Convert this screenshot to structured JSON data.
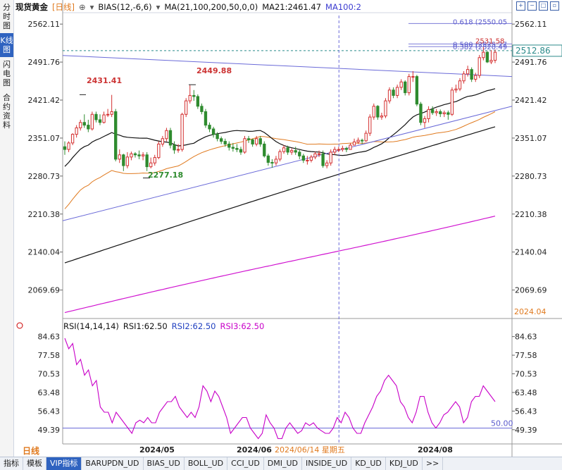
{
  "sidebar": {
    "tabs": [
      {
        "label": "分时图",
        "active": false
      },
      {
        "label": "K线图",
        "active": true
      },
      {
        "label": "闪电图",
        "active": false
      },
      {
        "label": "合约资料",
        "active": false
      }
    ]
  },
  "header": {
    "title": "现货黄金",
    "period": "[日线]",
    "bias": "BIAS(12,-6,6)",
    "ma": "MA(21,100,200,50,0,0)",
    "ma21": "MA21:2461.47",
    "ma100": "MA100:2"
  },
  "chart_data": {
    "type": "candlestick",
    "price_axis": {
      "ticks": [
        2562.11,
        2491.76,
        2421.42,
        2351.07,
        2280.73,
        2210.38,
        2140.04,
        2069.69
      ],
      "ylim": [
        2017,
        2578
      ],
      "current_price": "2512.86",
      "bottom_value": "2024.04"
    },
    "annotations": {
      "high1": "2431.41",
      "high2": "2449.88",
      "low1": "2277.18",
      "fib1": "0.618 (2550.05",
      "fib2": "0.500 (2525.27",
      "fib3": "0.382 (2520.49",
      "fib4": "2531.58"
    },
    "time_axis": {
      "labels": [
        {
          "label": "2024/05",
          "index": 14
        },
        {
          "label": "2024/06",
          "index": 34
        },
        {
          "label": "2024/08",
          "index": 72
        }
      ],
      "crosshair_label": "2024/06/14 星期五",
      "crosshair_index": 69
    },
    "candles": {
      "open": [
        2335,
        2330,
        2342,
        2358,
        2370,
        2380,
        2375,
        2368,
        2395,
        2385,
        2380,
        2394,
        2395,
        2400,
        2312,
        2320,
        2300,
        2316,
        2322,
        2320,
        2318,
        2320,
        2298,
        2305,
        2315,
        2340,
        2350,
        2365,
        2338,
        2329,
        2330,
        2395,
        2420,
        2430,
        2428,
        2410,
        2400,
        2375,
        2368,
        2358,
        2350,
        2345,
        2340,
        2334,
        2332,
        2330,
        2325,
        2350,
        2348,
        2340,
        2350,
        2340,
        2318,
        2306,
        2305,
        2312,
        2326,
        2333,
        2325,
        2328,
        2325,
        2318,
        2310,
        2310,
        2316,
        2322,
        2322,
        2300,
        2305,
        2325,
        2330,
        2330,
        2332,
        2330,
        2338,
        2344,
        2347,
        2346,
        2360,
        2390,
        2410,
        2390,
        2392,
        2420,
        2440,
        2430,
        2445,
        2455,
        2435,
        2465,
        2465,
        2414,
        2380,
        2387,
        2404,
        2398,
        2400,
        2396,
        2398,
        2395,
        2440,
        2442,
        2457,
        2470,
        2478,
        2460,
        2467,
        2500,
        2510,
        2492,
        2495
      ],
      "close": [
        2330,
        2342,
        2358,
        2370,
        2380,
        2375,
        2368,
        2395,
        2385,
        2380,
        2394,
        2395,
        2400,
        2312,
        2320,
        2300,
        2316,
        2322,
        2320,
        2318,
        2320,
        2298,
        2305,
        2315,
        2340,
        2350,
        2365,
        2338,
        2329,
        2330,
        2395,
        2420,
        2430,
        2428,
        2410,
        2400,
        2375,
        2368,
        2358,
        2350,
        2345,
        2340,
        2334,
        2332,
        2330,
        2325,
        2350,
        2348,
        2340,
        2350,
        2340,
        2318,
        2306,
        2305,
        2312,
        2326,
        2333,
        2325,
        2328,
        2325,
        2318,
        2310,
        2310,
        2316,
        2322,
        2322,
        2300,
        2305,
        2325,
        2330,
        2330,
        2332,
        2330,
        2338,
        2344,
        2347,
        2346,
        2360,
        2390,
        2410,
        2390,
        2392,
        2420,
        2440,
        2430,
        2445,
        2455,
        2435,
        2465,
        2465,
        2414,
        2380,
        2387,
        2404,
        2398,
        2400,
        2396,
        2398,
        2395,
        2440,
        2442,
        2457,
        2470,
        2478,
        2460,
        2467,
        2500,
        2510,
        2492,
        2495,
        2510
      ],
      "high": [
        2345,
        2345,
        2360,
        2375,
        2385,
        2395,
        2385,
        2400,
        2400,
        2395,
        2400,
        2405,
        2431,
        2405,
        2330,
        2322,
        2325,
        2326,
        2325,
        2328,
        2325,
        2325,
        2315,
        2320,
        2345,
        2355,
        2370,
        2370,
        2345,
        2340,
        2398,
        2425,
        2449,
        2440,
        2432,
        2415,
        2405,
        2380,
        2372,
        2362,
        2354,
        2350,
        2345,
        2342,
        2340,
        2335,
        2355,
        2355,
        2350,
        2355,
        2355,
        2345,
        2322,
        2312,
        2318,
        2330,
        2338,
        2337,
        2332,
        2335,
        2330,
        2322,
        2318,
        2320,
        2326,
        2328,
        2328,
        2310,
        2330,
        2335,
        2335,
        2337,
        2335,
        2342,
        2350,
        2352,
        2350,
        2365,
        2395,
        2415,
        2412,
        2398,
        2425,
        2445,
        2445,
        2450,
        2460,
        2458,
        2470,
        2475,
        2468,
        2418,
        2392,
        2410,
        2410,
        2405,
        2404,
        2402,
        2402,
        2445,
        2450,
        2462,
        2475,
        2485,
        2482,
        2472,
        2505,
        2520,
        2512,
        2514,
        2515
      ],
      "low": [
        2320,
        2325,
        2338,
        2352,
        2365,
        2370,
        2362,
        2365,
        2380,
        2375,
        2378,
        2390,
        2390,
        2308,
        2305,
        2290,
        2295,
        2310,
        2315,
        2312,
        2310,
        2290,
        2295,
        2300,
        2312,
        2335,
        2345,
        2332,
        2322,
        2324,
        2326,
        2390,
        2415,
        2420,
        2405,
        2395,
        2370,
        2362,
        2352,
        2345,
        2340,
        2335,
        2328,
        2326,
        2325,
        2320,
        2322,
        2342,
        2335,
        2336,
        2335,
        2315,
        2300,
        2296,
        2300,
        2308,
        2322,
        2320,
        2320,
        2320,
        2312,
        2305,
        2302,
        2306,
        2312,
        2316,
        2296,
        2295,
        2300,
        2320,
        2325,
        2326,
        2325,
        2330,
        2338,
        2340,
        2340,
        2344,
        2355,
        2385,
        2385,
        2385,
        2388,
        2415,
        2425,
        2425,
        2440,
        2430,
        2430,
        2455,
        2410,
        2375,
        2370,
        2380,
        2394,
        2392,
        2390,
        2390,
        2385,
        2392,
        2435,
        2438,
        2452,
        2465,
        2455,
        2455,
        2462,
        2495,
        2490,
        2488,
        2490
      ]
    },
    "series": [
      {
        "name": "MA21",
        "color": "#000000",
        "values_start": [
          2330,
          2336,
          2345,
          2355,
          2363,
          2370,
          2372
        ]
      },
      {
        "name": "MA50",
        "color": "#e07a1f"
      },
      {
        "name": "MA100",
        "color": "#000000"
      },
      {
        "name": "MA200",
        "color": "#d012d0"
      }
    ],
    "rsi": {
      "header": {
        "label": "RSI(14,14,14)",
        "rsi1": "RSI1:62.50",
        "rsi2": "RSI2:62.50",
        "rsi3": "RSI3:62.50"
      },
      "ticks": [
        84.63,
        77.58,
        70.53,
        63.48,
        56.43,
        49.39
      ],
      "ylim": [
        44,
        88
      ],
      "level_label": "50.00",
      "level": 50,
      "color": "#c800c8",
      "values": [
        84,
        80,
        82,
        74,
        76,
        70,
        72,
        66,
        68,
        58,
        56,
        56,
        52,
        56,
        54,
        52,
        50,
        48,
        52,
        53,
        52,
        54,
        52,
        52,
        56,
        58,
        60,
        60,
        62,
        58,
        56,
        54,
        56,
        54,
        58,
        66,
        64,
        60,
        64,
        62,
        58,
        54,
        48,
        50,
        52,
        54,
        54,
        50,
        48,
        46,
        48,
        55,
        52,
        50,
        46,
        46,
        50,
        52,
        50,
        48,
        49,
        52,
        51,
        52,
        50,
        49,
        48,
        48,
        50,
        54,
        52,
        56,
        54,
        50,
        48,
        48,
        52,
        55,
        58,
        62,
        64,
        68,
        70,
        68,
        66,
        60,
        58,
        54,
        52,
        56,
        62,
        62,
        56,
        52,
        50,
        52,
        55,
        56,
        58,
        60,
        58,
        52,
        54,
        60,
        62,
        62,
        66,
        64,
        62,
        60
      ]
    }
  },
  "bottombar": {
    "period": "日线",
    "tabs": [
      "指标",
      "模板",
      "VIP指标",
      "BARUPDN_UD",
      "BIAS_UD",
      "BOLL_UD",
      "CCI_UD",
      "DMI_UD",
      "INSIDE_UD",
      "KD_UD",
      "KDJ_UD",
      ">>"
    ],
    "active_tab": "VIP指标"
  }
}
